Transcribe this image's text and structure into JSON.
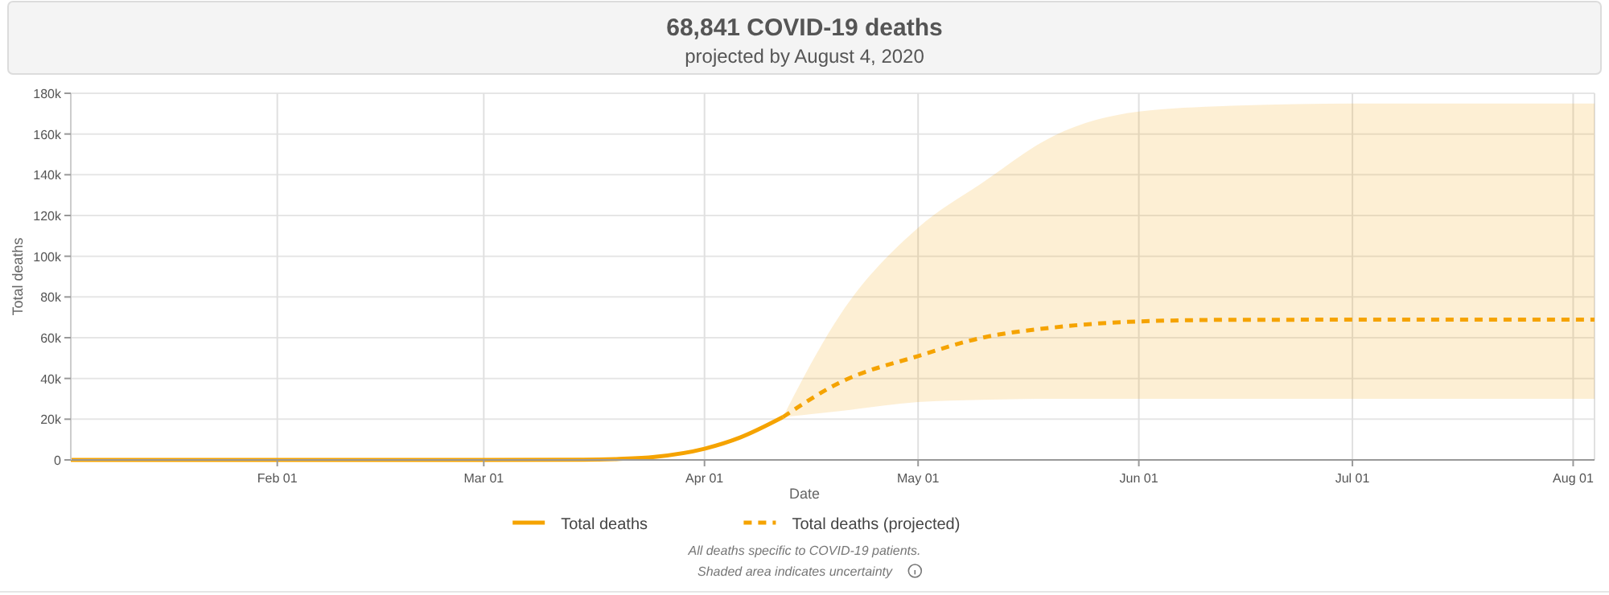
{
  "chart_data": {
    "type": "line",
    "title": "68,841 COVID-19 deaths",
    "subtitle": "projected by August 4, 2020",
    "xlabel": "Date",
    "ylabel": "Total deaths",
    "xlim": [
      "2020-01-03",
      "2020-08-04"
    ],
    "xticks": [
      {
        "value": "2020-02-01",
        "label": "Feb 01"
      },
      {
        "value": "2020-03-01",
        "label": "Mar 01"
      },
      {
        "value": "2020-04-01",
        "label": "Apr 01"
      },
      {
        "value": "2020-05-01",
        "label": "May 01"
      },
      {
        "value": "2020-06-01",
        "label": "Jun 01"
      },
      {
        "value": "2020-07-01",
        "label": "Jul 01"
      },
      {
        "value": "2020-08-01",
        "label": "Aug 01"
      }
    ],
    "ylim": [
      0,
      180000
    ],
    "yticks": [
      0,
      {
        "value": 20000,
        "label": "20k"
      },
      {
        "value": 40000,
        "label": "40k"
      },
      {
        "value": 60000,
        "label": "60k"
      },
      {
        "value": 80000,
        "label": "80k"
      },
      {
        "value": 100000,
        "label": "100k"
      },
      {
        "value": 120000,
        "label": "120k"
      },
      {
        "value": 140000,
        "label": "140k"
      },
      {
        "value": 160000,
        "label": "160k"
      },
      {
        "value": 180000,
        "label": "180k"
      }
    ],
    "grid": true,
    "legend": "bottom",
    "marker": "none",
    "series": [
      {
        "name": "Total deaths",
        "color": "#f5a300",
        "line_style": "solid",
        "x": [
          "2020-01-03",
          "2020-03-01",
          "2020-03-15",
          "2020-03-20",
          "2020-03-25",
          "2020-04-01",
          "2020-04-06",
          "2020-04-12"
        ],
        "values": [
          0,
          0,
          100,
          500,
          1500,
          5500,
          11000,
          21000
        ]
      },
      {
        "name": "Total deaths (projected)",
        "color": "#f5a300",
        "line_style": "dashed",
        "x": [
          "2020-04-12",
          "2020-04-20",
          "2020-05-01",
          "2020-05-10",
          "2020-05-20",
          "2020-06-01",
          "2020-06-15",
          "2020-07-01",
          "2020-08-04"
        ],
        "values": [
          21000,
          38000,
          51000,
          60000,
          65000,
          68000,
          68800,
          68841,
          68841
        ],
        "lower": [
          21000,
          24000,
          28400,
          29500,
          30000,
          30000,
          30000,
          30000,
          30000
        ],
        "upper": [
          21000,
          71000,
          114000,
          136000,
          159000,
          171000,
          174000,
          175000,
          175000
        ]
      }
    ],
    "annotations": [
      "All deaths specific to COVID-19 patients.",
      "Shaded area indicates uncertainty"
    ]
  }
}
